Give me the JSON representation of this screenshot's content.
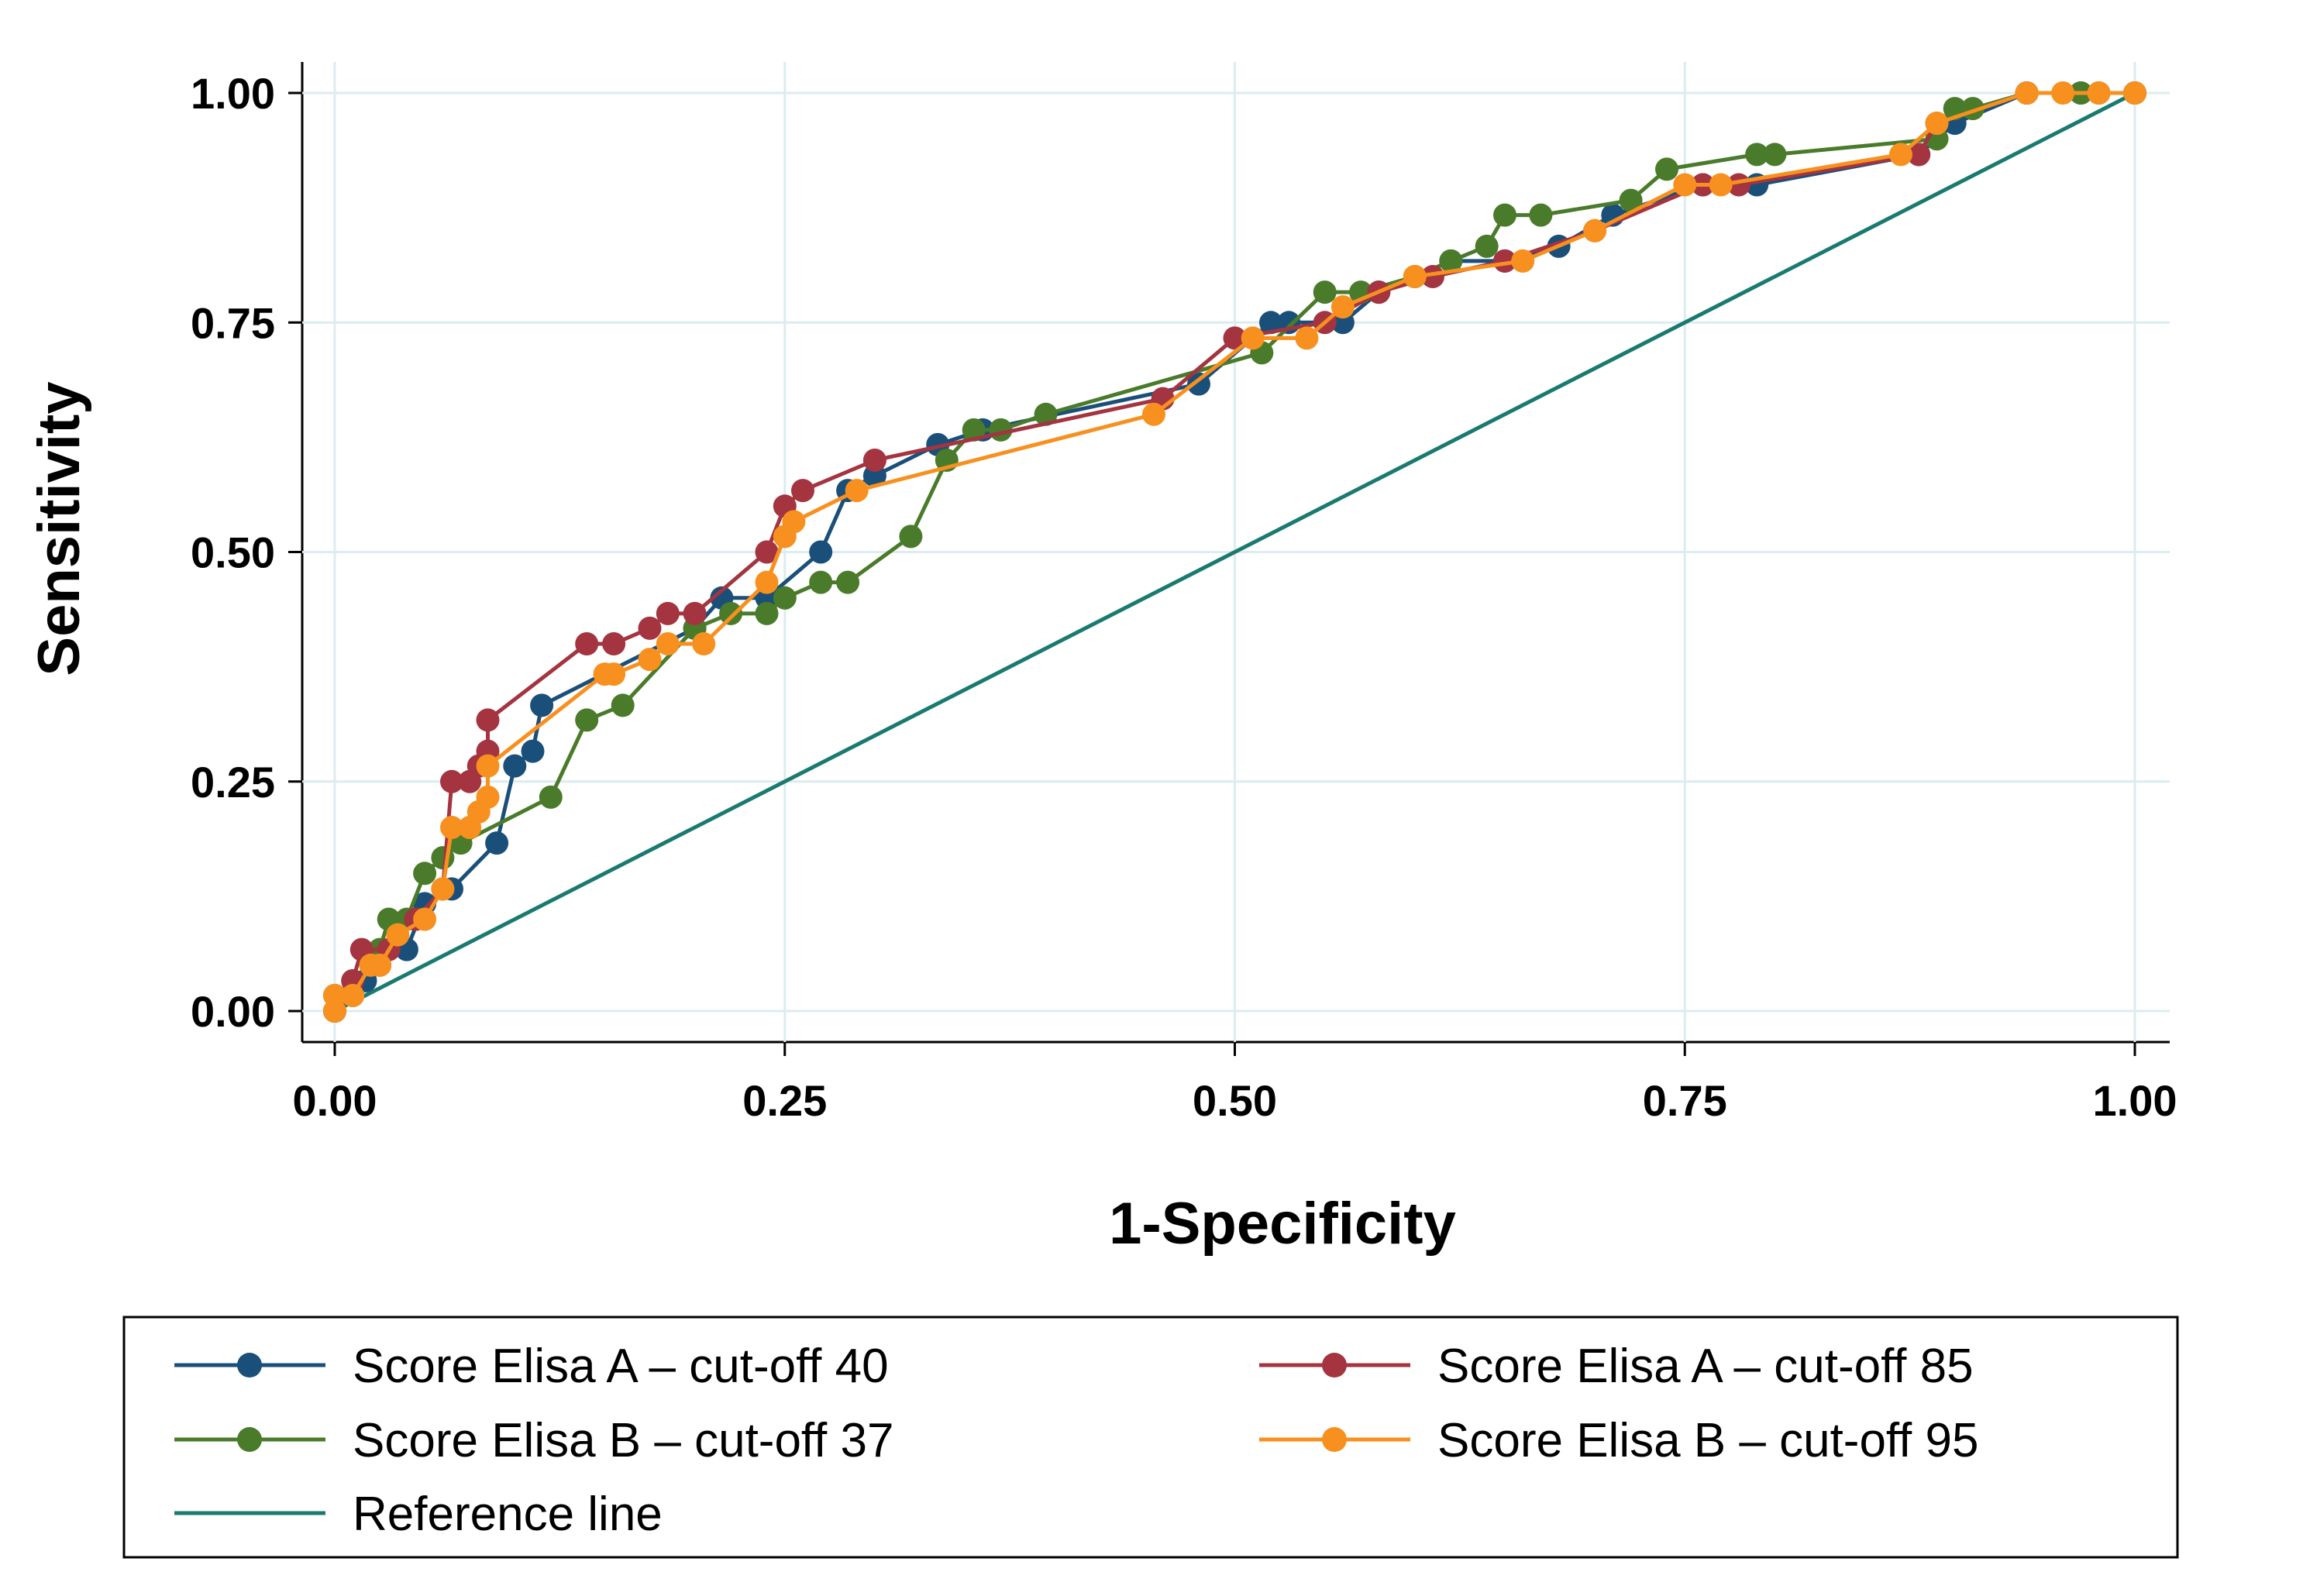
{
  "chart_data": {
    "type": "line",
    "title": "",
    "xlabel": "1-Specificity",
    "ylabel": "Sensitivity",
    "xlim": [
      0,
      1
    ],
    "ylim": [
      0,
      1
    ],
    "grid": true,
    "x_ticks": [
      "0.00",
      "0.25",
      "0.50",
      "0.75",
      "1.00"
    ],
    "y_ticks": [
      "0.00",
      "0.25",
      "0.50",
      "0.75",
      "1.00"
    ],
    "legend_position": "bottom",
    "series": [
      {
        "name": "Score Elisa A – cut-off 40",
        "color": "#1a4f7a",
        "markers": true,
        "points": [
          [
            0,
            0
          ],
          [
            0,
            0.017
          ],
          [
            0.017,
            0.033
          ],
          [
            0.025,
            0.05
          ],
          [
            0.04,
            0.067
          ],
          [
            0.05,
            0.117
          ],
          [
            0.065,
            0.133
          ],
          [
            0.09,
            0.183
          ],
          [
            0.1,
            0.267
          ],
          [
            0.11,
            0.283
          ],
          [
            0.115,
            0.333
          ],
          [
            0.2,
            0.417
          ],
          [
            0.215,
            0.45
          ],
          [
            0.24,
            0.45
          ],
          [
            0.27,
            0.5
          ],
          [
            0.285,
            0.567
          ],
          [
            0.3,
            0.583
          ],
          [
            0.335,
            0.617
          ],
          [
            0.36,
            0.633
          ],
          [
            0.48,
            0.683
          ],
          [
            0.52,
            0.75
          ],
          [
            0.53,
            0.75
          ],
          [
            0.56,
            0.75
          ],
          [
            0.58,
            0.783
          ],
          [
            0.62,
            0.817
          ],
          [
            0.65,
            0.817
          ],
          [
            0.68,
            0.833
          ],
          [
            0.71,
            0.867
          ],
          [
            0.76,
            0.9
          ],
          [
            0.79,
            0.9
          ],
          [
            0.88,
            0.933
          ],
          [
            0.9,
            0.967
          ],
          [
            0.94,
            1.0
          ],
          [
            0.97,
            1.0
          ],
          [
            1.0,
            1.0
          ]
        ]
      },
      {
        "name": "Score Elisa A – cut-off 85",
        "color": "#a33440",
        "markers": true,
        "points": [
          [
            0,
            0
          ],
          [
            0.01,
            0.033
          ],
          [
            0.015,
            0.067
          ],
          [
            0.03,
            0.067
          ],
          [
            0.045,
            0.1
          ],
          [
            0.06,
            0.133
          ],
          [
            0.065,
            0.25
          ],
          [
            0.075,
            0.25
          ],
          [
            0.08,
            0.267
          ],
          [
            0.085,
            0.283
          ],
          [
            0.085,
            0.317
          ],
          [
            0.14,
            0.4
          ],
          [
            0.155,
            0.4
          ],
          [
            0.175,
            0.417
          ],
          [
            0.185,
            0.433
          ],
          [
            0.2,
            0.433
          ],
          [
            0.24,
            0.5
          ],
          [
            0.25,
            0.55
          ],
          [
            0.26,
            0.567
          ],
          [
            0.3,
            0.6
          ],
          [
            0.46,
            0.667
          ],
          [
            0.5,
            0.733
          ],
          [
            0.55,
            0.75
          ],
          [
            0.58,
            0.783
          ],
          [
            0.61,
            0.8
          ],
          [
            0.65,
            0.817
          ],
          [
            0.7,
            0.85
          ],
          [
            0.76,
            0.9
          ],
          [
            0.78,
            0.9
          ],
          [
            0.88,
            0.933
          ],
          [
            0.89,
            0.967
          ],
          [
            0.94,
            1.0
          ],
          [
            0.98,
            1.0
          ],
          [
            1.0,
            1.0
          ]
        ]
      },
      {
        "name": "Score Elisa B – cut-off 37",
        "color": "#4a7b2a",
        "markers": true,
        "points": [
          [
            0,
            0
          ],
          [
            0.01,
            0.017
          ],
          [
            0.02,
            0.05
          ],
          [
            0.025,
            0.067
          ],
          [
            0.03,
            0.1
          ],
          [
            0.04,
            0.1
          ],
          [
            0.05,
            0.15
          ],
          [
            0.06,
            0.167
          ],
          [
            0.07,
            0.183
          ],
          [
            0.12,
            0.233
          ],
          [
            0.14,
            0.317
          ],
          [
            0.16,
            0.333
          ],
          [
            0.2,
            0.417
          ],
          [
            0.22,
            0.433
          ],
          [
            0.24,
            0.433
          ],
          [
            0.25,
            0.45
          ],
          [
            0.27,
            0.467
          ],
          [
            0.285,
            0.467
          ],
          [
            0.32,
            0.517
          ],
          [
            0.34,
            0.6
          ],
          [
            0.355,
            0.633
          ],
          [
            0.37,
            0.633
          ],
          [
            0.395,
            0.65
          ],
          [
            0.515,
            0.717
          ],
          [
            0.55,
            0.783
          ],
          [
            0.57,
            0.783
          ],
          [
            0.6,
            0.8
          ],
          [
            0.62,
            0.817
          ],
          [
            0.64,
            0.833
          ],
          [
            0.65,
            0.867
          ],
          [
            0.67,
            0.867
          ],
          [
            0.72,
            0.883
          ],
          [
            0.74,
            0.917
          ],
          [
            0.79,
            0.933
          ],
          [
            0.8,
            0.933
          ],
          [
            0.89,
            0.95
          ],
          [
            0.9,
            0.983
          ],
          [
            0.91,
            0.983
          ],
          [
            0.94,
            1.0
          ],
          [
            0.97,
            1.0
          ],
          [
            1.0,
            1.0
          ]
        ]
      },
      {
        "name": "Score Elisa B – cut-off 95",
        "color": "#f7901e",
        "markers": true,
        "points": [
          [
            0,
            0
          ],
          [
            0,
            0.017
          ],
          [
            0.01,
            0.017
          ],
          [
            0.02,
            0.05
          ],
          [
            0.025,
            0.05
          ],
          [
            0.035,
            0.083
          ],
          [
            0.05,
            0.1
          ],
          [
            0.06,
            0.133
          ],
          [
            0.065,
            0.2
          ],
          [
            0.075,
            0.2
          ],
          [
            0.08,
            0.217
          ],
          [
            0.085,
            0.233
          ],
          [
            0.085,
            0.267
          ],
          [
            0.15,
            0.367
          ],
          [
            0.155,
            0.367
          ],
          [
            0.175,
            0.383
          ],
          [
            0.185,
            0.4
          ],
          [
            0.205,
            0.4
          ],
          [
            0.24,
            0.467
          ],
          [
            0.25,
            0.517
          ],
          [
            0.255,
            0.533
          ],
          [
            0.29,
            0.567
          ],
          [
            0.455,
            0.65
          ],
          [
            0.51,
            0.733
          ],
          [
            0.54,
            0.733
          ],
          [
            0.56,
            0.767
          ],
          [
            0.6,
            0.8
          ],
          [
            0.66,
            0.817
          ],
          [
            0.7,
            0.85
          ],
          [
            0.75,
            0.9
          ],
          [
            0.77,
            0.9
          ],
          [
            0.87,
            0.933
          ],
          [
            0.89,
            0.967
          ],
          [
            0.94,
            1.0
          ],
          [
            0.96,
            1.0
          ],
          [
            0.98,
            1.0
          ],
          [
            1.0,
            1.0
          ]
        ]
      },
      {
        "name": "Reference line",
        "color": "#1a7a70",
        "markers": false,
        "points": [
          [
            0,
            0
          ],
          [
            1,
            1
          ]
        ]
      }
    ]
  }
}
